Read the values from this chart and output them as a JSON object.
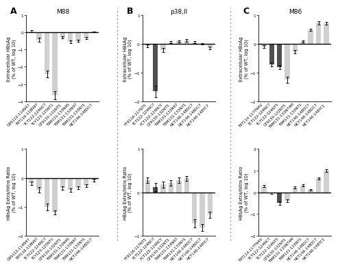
{
  "panel_A_title": "M88",
  "panel_B_title": "p38,II",
  "panel_C_title": "M86",
  "A_upper_labels": [
    "G9S112-114N47",
    "T9T116-118N97",
    "TCT122-124NC7",
    "TCY123-125NT1",
    "GT9130-132NT5",
    "T9M131-133N95",
    "T9M131-133N97",
    "T9M131-133NY1",
    "NCT146-148DC7"
  ],
  "A_upper_values": [
    0.05,
    -0.45,
    -2.4,
    -3.65,
    -0.3,
    -0.55,
    -0.5,
    -0.35,
    0.02
  ],
  "A_upper_errors": [
    0.05,
    0.12,
    0.2,
    0.25,
    0.05,
    0.08,
    0.07,
    0.06,
    0.02
  ],
  "A_upper_colors": [
    "#d0d0d0",
    "#d0d0d0",
    "#d0d0d0",
    "#d0d0d0",
    "#d0d0d0",
    "#d0d0d0",
    "#d0d0d0",
    "#d0d0d0",
    "#d0d0d0"
  ],
  "A_upper_ylim": [
    -4.0,
    1.0
  ],
  "A_upper_yticks": [
    -4,
    -3,
    -2,
    -1,
    0,
    1
  ],
  "A_lower_labels": [
    "G9S112-114N47",
    "T9T116-118N97",
    "TCT122-124NC7",
    "TCY123-125NT1",
    "GT9130-132NT5",
    "T9M131-133N95",
    "T9M131-133N97",
    "T9M131-133NY1",
    "NCT146-148DC7"
  ],
  "A_lower_values": [
    -0.18,
    -0.42,
    -1.0,
    -1.2,
    -0.35,
    -0.42,
    -0.35,
    -0.28,
    -0.08
  ],
  "A_lower_errors": [
    0.06,
    0.1,
    0.12,
    0.08,
    0.06,
    0.06,
    0.05,
    0.05,
    0.04
  ],
  "A_lower_colors": [
    "#d0d0d0",
    "#d0d0d0",
    "#d0d0d0",
    "#d0d0d0",
    "#d0d0d0",
    "#d0d0d0",
    "#d0d0d0",
    "#d0d0d0",
    "#d0d0d0"
  ],
  "A_lower_ylim": [
    -2.0,
    1.0
  ],
  "A_lower_yticks": [
    -2,
    -1,
    0,
    1
  ],
  "B_upper_labels": [
    "FT9116-117NT5",
    "TCT122-124NC7",
    "FCT122-124NCY",
    "GT9130-132NT5",
    "T9M131-133N97",
    "T9M131-133NY1",
    "NCT146-148DC7",
    "NCT146-148DC7",
    "NCT146-148YC7"
  ],
  "B_upper_values": [
    -0.08,
    -1.65,
    -0.22,
    0.05,
    0.08,
    0.12,
    0.05,
    0.0,
    -0.15
  ],
  "B_upper_errors": [
    0.04,
    0.2,
    0.08,
    0.03,
    0.04,
    0.05,
    0.03,
    0.02,
    0.04
  ],
  "B_upper_colors": [
    "#d0d0d0",
    "#505050",
    "#d0d0d0",
    "#d0d0d0",
    "#d0d0d0",
    "#d0d0d0",
    "#d0d0d0",
    "#d0d0d0",
    "#d0d0d0"
  ],
  "B_upper_ylim": [
    -2.0,
    1.0
  ],
  "B_upper_yticks": [
    -2,
    -1,
    0,
    1
  ],
  "B_lower_labels": [
    "FT9116-117NT5",
    "TCT122-124NC7",
    "FCT122-124NCY",
    "GT9130-132NT5",
    "T9M131-133N97",
    "T9M131-133NY1",
    "NCT146-148DC7",
    "NCT146-148DC7",
    "NCT146-148YC7"
  ],
  "B_lower_values": [
    0.28,
    0.12,
    0.18,
    0.22,
    0.28,
    0.32,
    -0.72,
    -0.82,
    -0.52
  ],
  "B_lower_errors": [
    0.07,
    0.09,
    0.07,
    0.06,
    0.07,
    0.06,
    0.09,
    0.08,
    0.07
  ],
  "B_lower_colors": [
    "#d0d0d0",
    "#505050",
    "#d0d0d0",
    "#d0d0d0",
    "#d0d0d0",
    "#d0d0d0",
    "#d0d0d0",
    "#d0d0d0",
    "#d0d0d0"
  ],
  "B_lower_ylim": [
    -1.0,
    1.0
  ],
  "B_lower_yticks": [
    -1,
    0,
    1
  ],
  "C_upper_labels": [
    "T9T114-117TN4V",
    "TCT122-124NC7",
    "TCT122-124NT5",
    "GT9130-132NT5",
    "T9M131-133NT4M",
    "T9M131-133NT1",
    "NCT146-148DC7",
    "NCT146-148DC7",
    "NCT146-148YC1"
  ],
  "C_upper_values": [
    -0.1,
    -0.72,
    -0.82,
    -1.25,
    -0.28,
    0.08,
    0.48,
    0.72,
    0.7
  ],
  "C_upper_errors": [
    0.05,
    0.08,
    0.07,
    0.1,
    0.05,
    0.04,
    0.04,
    0.05,
    0.05
  ],
  "C_upper_colors": [
    "#d0d0d0",
    "#505050",
    "#505050",
    "#d0d0d0",
    "#d0d0d0",
    "#d0d0d0",
    "#d0d0d0",
    "#d0d0d0",
    "#d0d0d0"
  ],
  "C_upper_ylim": [
    -2.0,
    1.0
  ],
  "C_upper_yticks": [
    -2,
    -1,
    0,
    1
  ],
  "C_lower_labels": [
    "T9T114-117TN4V",
    "TCT122-124NC7",
    "TCT122-124NT5",
    "GT9130-132NT5",
    "T9M131-133NT4M",
    "T9M131-133NT1",
    "NCT146-148DC7",
    "NCT146-148DC7",
    "NCT146-148YC1"
  ],
  "C_lower_values": [
    0.28,
    -0.05,
    -0.5,
    -0.38,
    0.22,
    0.32,
    0.12,
    0.65,
    1.0
  ],
  "C_lower_errors": [
    0.05,
    0.04,
    0.07,
    0.06,
    0.05,
    0.05,
    0.04,
    0.05,
    0.06
  ],
  "C_lower_colors": [
    "#d0d0d0",
    "#505050",
    "#505050",
    "#d0d0d0",
    "#d0d0d0",
    "#d0d0d0",
    "#d0d0d0",
    "#d0d0d0",
    "#d0d0d0"
  ],
  "C_lower_ylim": [
    -2.0,
    2.0
  ],
  "C_lower_yticks": [
    -2,
    -1,
    0,
    1,
    2
  ],
  "ylabel_upper": "Extracellular HBsAg\n(% of WT, log 10)",
  "ylabel_lower": "HBsAg Extra/Intra Ratio\n(% of WT, log 10)",
  "label_fontsize": 4.8,
  "tick_fontsize": 4.2,
  "title_fontsize": 6.5,
  "panel_label_fontsize": 9,
  "bar_width": 0.65,
  "zero_line_color": "#000000",
  "zero_line_lw": 1.0,
  "background_color": "#ffffff"
}
